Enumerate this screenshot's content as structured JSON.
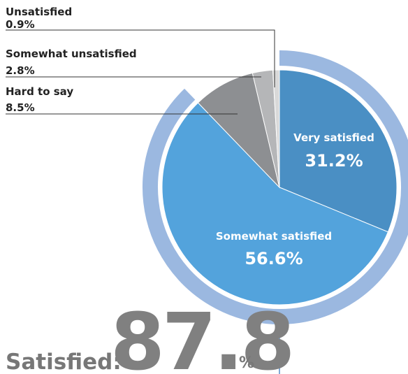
{
  "chart_data": {
    "type": "pie",
    "categories": [
      "Very satisfied",
      "Somewhat satisfied",
      "Hard to say",
      "Somewhat unsatisfied",
      "Unsatisfied"
    ],
    "values": [
      31.2,
      56.6,
      8.5,
      2.8,
      0.9
    ],
    "value_labels": [
      "31.2%",
      "56.6%",
      "8.5%",
      "2.8%",
      "0.9%"
    ],
    "colors": [
      "#4a8fc4",
      "#53a3dc",
      "#8d8f92",
      "#b5b6b8",
      "#d9d9d9"
    ],
    "satisfied": {
      "label": "Satisfied:",
      "value": 87.8,
      "unit": "%",
      "color": "#9bb8e0"
    }
  }
}
